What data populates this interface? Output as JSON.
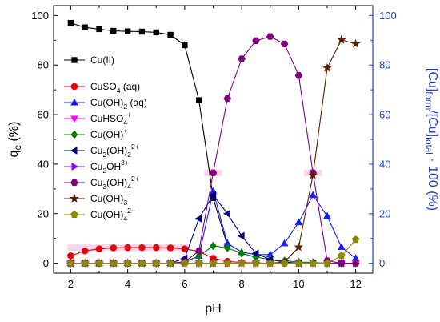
{
  "chart_data": {
    "type": "line",
    "x": [
      2,
      2.5,
      3,
      3.5,
      4,
      4.5,
      5,
      5.5,
      6,
      6.5,
      7,
      7.5,
      8,
      8.5,
      9,
      9.5,
      10,
      10.5,
      11,
      11.5,
      12
    ],
    "xlabel": "pH",
    "xlim": [
      1.4,
      12.6
    ],
    "xticks": [
      "2",
      "4",
      "6",
      "8",
      "10",
      "12"
    ],
    "ylabel_left": "q",
    "ylabel_left_sub": "e",
    "ylabel_left_unit": " (%)",
    "ylim_left": [
      -4,
      104
    ],
    "yticks_left": [
      "0",
      "20",
      "40",
      "60",
      "80",
      "100"
    ],
    "ylabel_right_parts": [
      {
        "t": "[Cu]",
        "s": "n"
      },
      {
        "t": "form",
        "s": "sub"
      },
      {
        "t": "/[Cu]",
        "s": "n"
      },
      {
        "t": "total",
        "s": "sub"
      },
      {
        "t": " · 100 (%)",
        "s": "n"
      }
    ],
    "ylim_right": [
      -4,
      104
    ],
    "yticks_right": [
      "0",
      "20",
      "40",
      "60",
      "80",
      "100"
    ],
    "grid": false,
    "legend_position": "top-left",
    "series": [
      {
        "name": "Cu(II)",
        "label_parts": [
          {
            "t": "Cu(II)",
            "s": "n"
          }
        ],
        "axis": "left",
        "color": "#000000",
        "marker": "square",
        "x": [
          2,
          2.5,
          3,
          3.5,
          4,
          4.5,
          5,
          5.5,
          6,
          6.5,
          7,
          7.5
        ],
        "values": [
          97,
          95.2,
          94.5,
          93.8,
          93.6,
          93.5,
          93.2,
          92.2,
          88,
          65.8,
          26.3,
          7
        ]
      },
      {
        "name": "CuSO4 (aq)",
        "label_parts": [
          {
            "t": "CuSO",
            "s": "n"
          },
          {
            "t": "4",
            "s": "sub"
          },
          {
            "t": " (aq)",
            "s": "n"
          }
        ],
        "axis": "right",
        "color": "#e8000b",
        "marker": "circle",
        "x": [
          2,
          2.5,
          3,
          3.5,
          4,
          4.5,
          5,
          5.5,
          6,
          6.5,
          7,
          7.5,
          8,
          8.5,
          9,
          9.5,
          10,
          10.5,
          11,
          11.5,
          12
        ],
        "values": [
          3,
          5,
          5.8,
          6.2,
          6.3,
          6.3,
          6.3,
          6.2,
          5.8,
          4.8,
          2,
          0.8,
          0.3,
          0.1,
          0,
          0,
          0,
          0,
          0,
          0,
          0
        ]
      },
      {
        "name": "Cu(OH)2 (aq)",
        "label_parts": [
          {
            "t": "Cu(OH)",
            "s": "n"
          },
          {
            "t": "2",
            "s": "sub"
          },
          {
            "t": " (aq)",
            "s": "n"
          }
        ],
        "axis": "right",
        "color": "#1a1aff",
        "marker": "triangle-up",
        "x": [
          2,
          2.5,
          3,
          3.5,
          4,
          4.5,
          5,
          5.5,
          6,
          6.5,
          7,
          7.5,
          8,
          8.5,
          9,
          9.5,
          10,
          10.5,
          11,
          11.5,
          12
        ],
        "values": [
          0,
          0,
          0,
          0,
          0,
          0,
          0,
          0,
          0.5,
          3,
          29,
          8,
          4.5,
          3.5,
          3.5,
          8,
          16.5,
          27.5,
          19,
          6.5,
          2
        ]
      },
      {
        "name": "CuHSO4+",
        "label_parts": [
          {
            "t": "CuHSO",
            "s": "n"
          },
          {
            "t": "4",
            "s": "sub"
          },
          {
            "t": "+",
            "s": "sup"
          }
        ],
        "axis": "right",
        "color": "#ff00ff",
        "marker": "triangle-down",
        "x": [
          2,
          2.5,
          3,
          3.5,
          4,
          4.5,
          5,
          5.5,
          6,
          6.5,
          7,
          7.5,
          8,
          8.5,
          9,
          9.5,
          10,
          10.5,
          11,
          11.5,
          12
        ],
        "values": [
          0,
          0,
          0,
          0,
          0,
          0,
          0,
          0,
          0,
          0,
          0,
          0,
          0,
          0,
          0,
          0,
          0,
          0,
          0,
          0,
          0
        ]
      },
      {
        "name": "Cu(OH)+",
        "label_parts": [
          {
            "t": "Cu(OH)",
            "s": "n"
          },
          {
            "t": "+",
            "s": "sup"
          }
        ],
        "axis": "right",
        "color": "#008000",
        "marker": "diamond",
        "x": [
          2,
          2.5,
          3,
          3.5,
          4,
          4.5,
          5,
          5.5,
          6,
          6.5,
          7,
          7.5,
          8,
          8.5,
          9,
          9.5,
          10,
          10.5,
          11,
          11.5,
          12
        ],
        "values": [
          0,
          0,
          0,
          0,
          0,
          0,
          0,
          0,
          0.5,
          3,
          7,
          6.2,
          4,
          2.5,
          1.5,
          1,
          0.5,
          0.3,
          0,
          0,
          0
        ]
      },
      {
        "name": "Cu2(OH)22+",
        "label_parts": [
          {
            "t": "Cu",
            "s": "n"
          },
          {
            "t": "2",
            "s": "sub"
          },
          {
            "t": "(OH)",
            "s": "n"
          },
          {
            "t": "2",
            "s": "sub"
          },
          {
            "t": "2+",
            "s": "sup"
          }
        ],
        "axis": "right",
        "color": "#000080",
        "marker": "triangle-left",
        "x": [
          2,
          2.5,
          3,
          3.5,
          4,
          4.5,
          5,
          5.5,
          6,
          6.5,
          7,
          7.5,
          8,
          8.5,
          9,
          9.5,
          10,
          10.5,
          11,
          11.5,
          12
        ],
        "values": [
          0,
          0,
          0,
          0,
          0,
          0,
          0,
          0,
          2,
          18,
          27.5,
          20,
          11,
          4,
          1.5,
          0.5,
          0,
          0,
          0,
          0,
          0
        ]
      },
      {
        "name": "Cu2OH3+",
        "label_parts": [
          {
            "t": "Cu",
            "s": "n"
          },
          {
            "t": "2",
            "s": "sub"
          },
          {
            "t": "OH",
            "s": "n"
          },
          {
            "t": "3+",
            "s": "sup"
          }
        ],
        "axis": "right",
        "color": "#8b00ff",
        "marker": "triangle-right",
        "x": [
          2,
          2.5,
          3,
          3.5,
          4,
          4.5,
          5,
          5.5,
          6,
          6.5,
          7,
          7.5,
          8,
          8.5,
          9,
          9.5,
          10,
          10.5,
          11,
          11.5,
          12
        ],
        "values": [
          0,
          0,
          0,
          0,
          0,
          0,
          0,
          0,
          0,
          0,
          0,
          0,
          0,
          0,
          0,
          0,
          0,
          0,
          0,
          0,
          0
        ]
      },
      {
        "name": "Cu3(OH)42+",
        "label_parts": [
          {
            "t": "Cu",
            "s": "n"
          },
          {
            "t": "3",
            "s": "sub"
          },
          {
            "t": "(OH)",
            "s": "n"
          },
          {
            "t": "4",
            "s": "sub"
          },
          {
            "t": "2+",
            "s": "sup"
          }
        ],
        "axis": "right",
        "color": "#800080",
        "marker": "hexagon",
        "x": [
          2,
          2.5,
          3,
          3.5,
          4,
          4.5,
          5,
          5.5,
          6,
          6.5,
          7,
          7.5,
          8,
          8.5,
          9,
          9.5,
          10,
          10.5,
          11,
          11.5,
          12
        ],
        "values": [
          0,
          0,
          0,
          0,
          0,
          0,
          0,
          0,
          0.5,
          5,
          36.5,
          66.5,
          82.5,
          89.8,
          91.5,
          88.5,
          75.8,
          36.5,
          1,
          0,
          0
        ]
      },
      {
        "name": "Cu(OH)3-",
        "label_parts": [
          {
            "t": "Cu(OH)",
            "s": "n"
          },
          {
            "t": "3",
            "s": "sub"
          },
          {
            "t": "−",
            "s": "sup"
          }
        ],
        "axis": "right",
        "color": "#5a1e00",
        "marker": "star",
        "x": [
          2,
          2.5,
          3,
          3.5,
          4,
          4.5,
          5,
          5.5,
          6,
          6.5,
          7,
          7.5,
          8,
          8.5,
          9,
          9.5,
          10,
          10.5,
          11,
          11.5,
          12
        ],
        "values": [
          0,
          0,
          0,
          0,
          0,
          0,
          0,
          0,
          0,
          0,
          0,
          0,
          0,
          0,
          0,
          0.5,
          6.5,
          35.5,
          78.8,
          90.2,
          88.5
        ]
      },
      {
        "name": "Cu(OH)42-",
        "label_parts": [
          {
            "t": "Cu(OH)",
            "s": "n"
          },
          {
            "t": "4",
            "s": "sub"
          },
          {
            "t": "2−",
            "s": "sup"
          }
        ],
        "axis": "right",
        "color": "#8a8a00",
        "marker": "pentagon",
        "x": [
          2,
          2.5,
          3,
          3.5,
          4,
          4.5,
          5,
          5.5,
          6,
          6.5,
          7,
          7.5,
          8,
          8.5,
          9,
          9.5,
          10,
          10.5,
          11,
          11.5,
          12
        ],
        "values": [
          0,
          0,
          0,
          0,
          0,
          0,
          0,
          0,
          0,
          0,
          0,
          0,
          0,
          0,
          0,
          0,
          0,
          0,
          0,
          3,
          9.5
        ]
      }
    ],
    "colors": {
      "left_axis": "#000000",
      "right_axis": "#1f3fbf",
      "highlight": "#ffc8e6"
    }
  }
}
